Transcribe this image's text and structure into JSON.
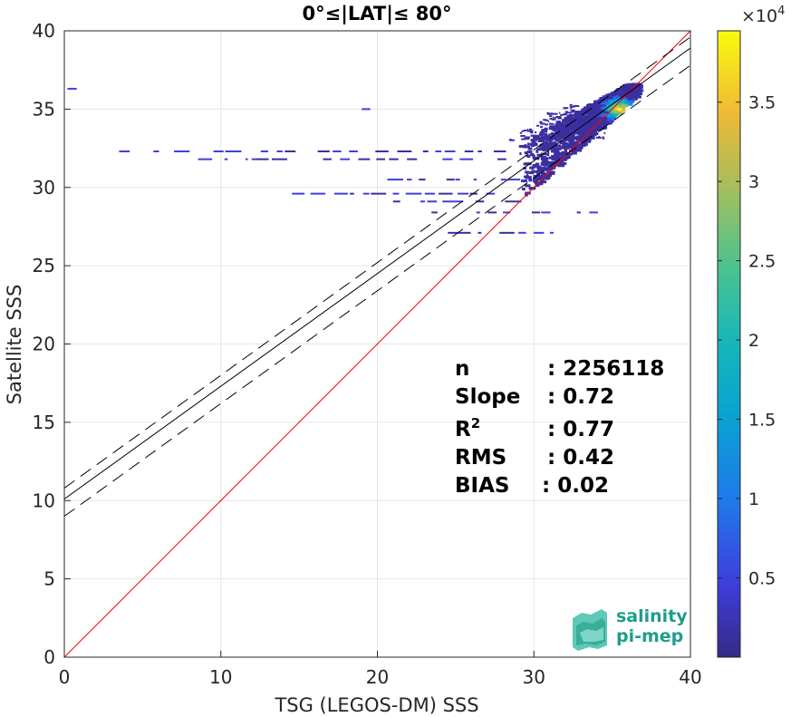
{
  "chart_data": {
    "type": "heatmap",
    "title": "0°≤|LAT|≤ 80°",
    "xlabel": "TSG (LEGOS-DM) SSS",
    "ylabel": "Satellite SSS",
    "xlim": [
      0,
      40
    ],
    "ylim": [
      0,
      40
    ],
    "xticks": [
      "0",
      "10",
      "20",
      "30",
      "40"
    ],
    "yticks": [
      "0",
      "5",
      "10",
      "15",
      "20",
      "25",
      "30",
      "35",
      "40"
    ],
    "grid": true,
    "lines": {
      "identity": {
        "slope": 1,
        "intercept": 0,
        "color": "#ff0000"
      },
      "fit": {
        "slope": 0.72,
        "intercept": 10.1,
        "color": "#000000"
      },
      "fit_upper": {
        "slope": 0.72,
        "intercept": 10.8,
        "color": "#000000",
        "dash": true
      },
      "fit_lower": {
        "slope": 0.72,
        "intercept": 9.0,
        "color": "#000000",
        "dash": true
      }
    },
    "density": {
      "main_cluster": {
        "x_range": [
          29,
          37
        ],
        "y_range": [
          28.5,
          36.5
        ],
        "peak": [
          35.3,
          35.0
        ]
      },
      "streaks": [
        {
          "y": 36.3,
          "x": [
            0.2,
            0.7
          ]
        },
        {
          "y": 35.0,
          "x": [
            19,
            19.4
          ]
        },
        {
          "y": 32.3,
          "x": [
            3.5,
            29
          ]
        },
        {
          "y": 31.8,
          "x": [
            8,
            29
          ]
        },
        {
          "y": 30.5,
          "x": [
            20,
            29
          ]
        },
        {
          "y": 29.6,
          "x": [
            14,
            29
          ]
        },
        {
          "y": 29.1,
          "x": [
            21,
            30
          ]
        },
        {
          "y": 28.4,
          "x": [
            19,
            34
          ]
        },
        {
          "y": 27.1,
          "x": [
            24.5,
            31.5
          ]
        }
      ]
    },
    "colorbar": {
      "multiplier": "×10",
      "exponent": "4",
      "min": 0,
      "max": 3.95,
      "ticks": [
        "0.5",
        "1",
        "1.5",
        "2",
        "2.5",
        "3",
        "3.5"
      ],
      "tick_values": [
        0.5,
        1,
        1.5,
        2,
        2.5,
        3,
        3.5
      ],
      "colormap": "parula"
    },
    "stats": [
      {
        "label": "n",
        "value": ": 2256118"
      },
      {
        "label": "Slope",
        "value": ": 0.72"
      },
      {
        "label": "R",
        "sup": "2",
        "value": ": 0.77"
      },
      {
        "label": "RMS",
        "value": ": 0.42"
      },
      {
        "label": "BIAS",
        "value": ": 0.02"
      }
    ]
  },
  "logo": {
    "line1": "salinity",
    "line2": "pi-mep"
  }
}
